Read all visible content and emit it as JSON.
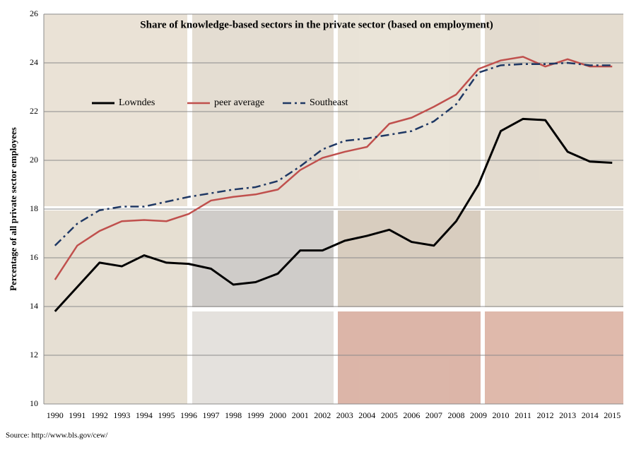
{
  "chart_data": {
    "type": "line",
    "title": "Share of knowledge-based  sectors in the private sector (based on employment)",
    "y_label": "Percentage of all private sector employees",
    "source": "Source: http://www.bls.gov/cew/",
    "categories": [
      "1990",
      "1991",
      "1992",
      "1993",
      "1994",
      "1995",
      "1996",
      "1997",
      "1998",
      "1999",
      "2000",
      "2001",
      "2002",
      "2003",
      "2004",
      "2005",
      "2006",
      "2007",
      "2008",
      "2009",
      "2010",
      "2011",
      "2012",
      "2013",
      "2014",
      "2015"
    ],
    "series": [
      {
        "name": "Lowndes",
        "color": "#000000",
        "dash": "solid",
        "values": [
          13.8,
          14.8,
          15.8,
          15.65,
          16.1,
          15.8,
          15.75,
          15.55,
          14.9,
          15.0,
          15.35,
          16.3,
          16.3,
          16.7,
          16.9,
          17.15,
          16.65,
          16.5,
          17.5,
          19.0,
          21.2,
          21.7,
          21.65,
          20.35,
          19.95,
          19.9
        ]
      },
      {
        "name": "peer average",
        "color": "#c0504d",
        "dash": "solid",
        "values": [
          15.1,
          16.5,
          17.1,
          17.5,
          17.55,
          17.5,
          17.8,
          18.35,
          18.5,
          18.6,
          18.8,
          19.6,
          20.1,
          20.35,
          20.55,
          21.5,
          21.75,
          22.2,
          22.7,
          23.75,
          24.1,
          24.25,
          23.85,
          24.15,
          23.85,
          23.85
        ]
      },
      {
        "name": "Southeast",
        "color": "#1f3864",
        "dash": "dashdot",
        "values": [
          16.5,
          17.4,
          17.95,
          18.1,
          18.1,
          18.3,
          18.5,
          18.65,
          18.8,
          18.9,
          19.15,
          19.75,
          20.45,
          20.8,
          20.9,
          21.05,
          21.2,
          21.6,
          22.3,
          23.6,
          23.9,
          23.95,
          23.95,
          24.0,
          23.9,
          23.9
        ]
      }
    ],
    "ylim": [
      10,
      26
    ],
    "yticks": [
      10,
      12,
      14,
      16,
      18,
      20,
      22,
      24,
      26
    ],
    "grid": true,
    "legend": "upper left"
  }
}
